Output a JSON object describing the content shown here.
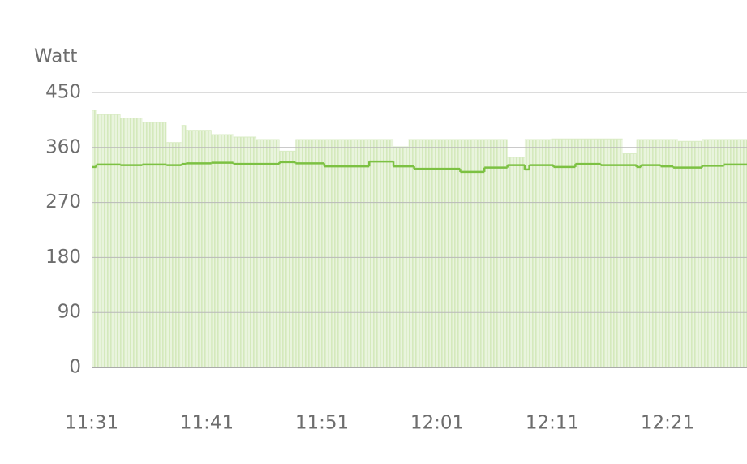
{
  "chart_data": {
    "type": "combo",
    "y_label": "Watt",
    "xlim": [
      691,
      747.9
    ],
    "ylim": [
      0,
      450
    ],
    "yticks": [
      0,
      90,
      180,
      270,
      360,
      450
    ],
    "xticks": [
      {
        "value": 691,
        "label": "11:31"
      },
      {
        "value": 701,
        "label": "11:41"
      },
      {
        "value": 711,
        "label": "11:51"
      },
      {
        "value": 721,
        "label": "12:01"
      },
      {
        "value": 731,
        "label": "12:11"
      },
      {
        "value": 741,
        "label": "12:21"
      }
    ],
    "grid": true,
    "series": [
      {
        "type": "bar",
        "color": "#d9ecc4",
        "x": [
          691.0,
          691.4,
          693.5,
          695.4,
          697.5,
          698.8,
          699.2,
          701.4,
          703.3,
          705.3,
          707.3,
          708.7,
          717.2,
          718.5,
          727.1,
          728.6,
          730.9,
          737.1,
          738.3,
          741.9,
          744.0
        ],
        "values": [
          421,
          414,
          408,
          401,
          368,
          396,
          388,
          381,
          377,
          373,
          354,
          373,
          361,
          373,
          344,
          373,
          374,
          350,
          373,
          370,
          373
        ]
      },
      {
        "type": "line",
        "color": "#7cc142",
        "x": [
          691.0,
          691.4,
          693.5,
          695.4,
          697.5,
          698.8,
          699.2,
          701.4,
          703.3,
          707.3,
          708.7,
          711.2,
          715.1,
          717.2,
          719.0,
          723.0,
          725.1,
          727.1,
          728.6,
          729.0,
          731.1,
          733.0,
          735.2,
          738.3,
          738.7,
          740.4,
          741.5,
          744.0,
          745.9
        ],
        "values": [
          328,
          332,
          331,
          332,
          331,
          333,
          334,
          335,
          333,
          336,
          334,
          329,
          337,
          329,
          325,
          320,
          327,
          331,
          324,
          331,
          328,
          333,
          331,
          328,
          331,
          329,
          327,
          330,
          332
        ]
      }
    ]
  }
}
